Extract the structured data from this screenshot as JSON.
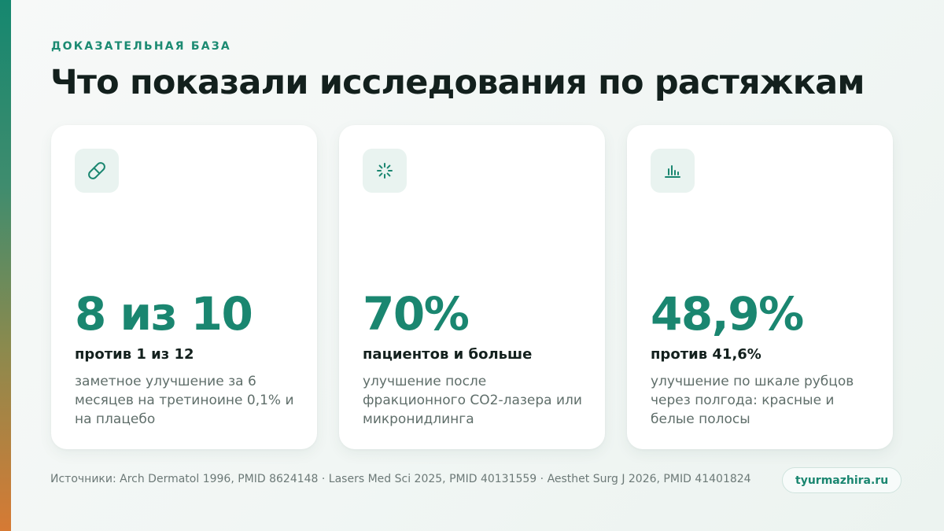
{
  "header": {
    "eyebrow": "ДОКАЗАТЕЛЬНАЯ БАЗА",
    "title": "Что показали исследования по растяжкам"
  },
  "cards": [
    {
      "icon": "pill-icon",
      "value": "8 из 10",
      "subtitle": "против 1 из 12",
      "description": "заметное улучшение за 6 месяцев на третиноине 0,1% и на плацебо"
    },
    {
      "icon": "laser-burst-icon",
      "value": "70%",
      "subtitle": "пациентов и больше",
      "description": "улучшение после фракционного CO2-лазера или микронидлинга"
    },
    {
      "icon": "bar-chart-icon",
      "value": "48,9%",
      "subtitle": "против 41,6%",
      "description": "улучшение по шкале рубцов через полгода: красные и белые полосы"
    }
  ],
  "footer": {
    "sources": "Источники: Arch Dermatol 1996, PMID 8624148 · Lasers Med Sci 2025, PMID 40131559 · Aesthet Surg J 2026, PMID 41401824",
    "site": "tyurmazhira.ru"
  },
  "colors": {
    "accent": "#1a8670",
    "icon_bg": "#e9f3f0",
    "text_dark": "#13201d",
    "text_muted": "#5f6e6a",
    "bar_top": "#15876f",
    "bar_bottom": "#d67a34"
  }
}
